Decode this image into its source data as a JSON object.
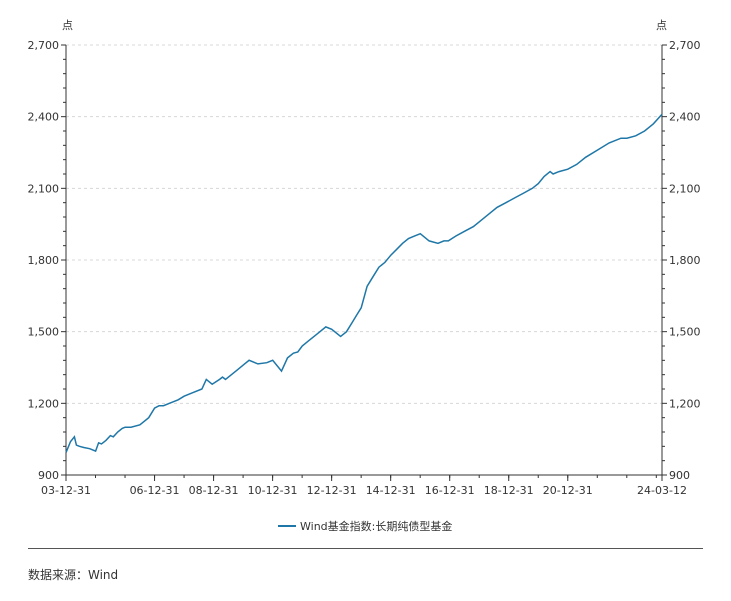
{
  "chart_data": {
    "type": "line",
    "y_unit_left": "点",
    "y_unit_right": "点",
    "ylim": [
      900,
      2700
    ],
    "y_ticks": [
      900,
      1200,
      1500,
      1800,
      2100,
      2400,
      2700
    ],
    "y_tick_labels": [
      "900",
      "1,200",
      "1,500",
      "1,800",
      "2,100",
      "2,400",
      "2,700"
    ],
    "x_range": [
      2003.997,
      2024.19
    ],
    "x_tick_labels": [
      {
        "x": 2003.997,
        "label": "03-12-31"
      },
      {
        "x": 2006.997,
        "label": "06-12-31"
      },
      {
        "x": 2008.997,
        "label": "08-12-31"
      },
      {
        "x": 2010.997,
        "label": "10-12-31"
      },
      {
        "x": 2012.997,
        "label": "12-12-31"
      },
      {
        "x": 2014.997,
        "label": "14-12-31"
      },
      {
        "x": 2016.997,
        "label": "16-12-31"
      },
      {
        "x": 2018.997,
        "label": "18-12-31"
      },
      {
        "x": 2020.997,
        "label": "20-12-31"
      },
      {
        "x": 2024.19,
        "label": "24-03-12"
      }
    ],
    "grid": "horizontal-dashed",
    "legend_position": "bottom-center",
    "color": "#1f77a8",
    "series": [
      {
        "name": "Wind基金指数:长期纯债型基金",
        "x": [
          2004.0,
          2004.15,
          2004.28,
          2004.35,
          2004.45,
          2004.6,
          2004.8,
          2005.0,
          2005.1,
          2005.2,
          2005.35,
          2005.5,
          2005.6,
          2005.75,
          2005.9,
          2006.0,
          2006.2,
          2006.5,
          2006.8,
          2007.0,
          2007.15,
          2007.3,
          2007.5,
          2007.8,
          2008.0,
          2008.3,
          2008.6,
          2008.75,
          2008.85,
          2008.95,
          2009.2,
          2009.3,
          2009.4,
          2009.6,
          2009.8,
          2010.0,
          2010.2,
          2010.5,
          2010.8,
          2011.0,
          2011.3,
          2011.5,
          2011.7,
          2011.85,
          2012.0,
          2012.2,
          2012.5,
          2012.8,
          2013.0,
          2013.3,
          2013.5,
          2013.7,
          2013.85,
          2014.0,
          2014.2,
          2014.4,
          2014.6,
          2014.8,
          2015.0,
          2015.2,
          2015.4,
          2015.6,
          2015.8,
          2016.0,
          2016.3,
          2016.6,
          2016.8,
          2016.95,
          2017.2,
          2017.5,
          2017.8,
          2018.0,
          2018.3,
          2018.6,
          2018.9,
          2019.2,
          2019.5,
          2019.8,
          2020.0,
          2020.2,
          2020.4,
          2020.5,
          2020.7,
          2021.0,
          2021.3,
          2021.6,
          2022.0,
          2022.4,
          2022.8,
          2023.0,
          2023.3,
          2023.6,
          2023.9,
          2024.19
        ],
        "values": [
          995,
          1040,
          1060,
          1025,
          1020,
          1015,
          1010,
          1000,
          1035,
          1030,
          1045,
          1065,
          1060,
          1080,
          1095,
          1100,
          1100,
          1110,
          1140,
          1180,
          1190,
          1190,
          1200,
          1215,
          1230,
          1245,
          1260,
          1300,
          1290,
          1280,
          1300,
          1310,
          1300,
          1320,
          1340,
          1360,
          1380,
          1365,
          1370,
          1380,
          1335,
          1390,
          1410,
          1415,
          1440,
          1460,
          1490,
          1520,
          1510,
          1480,
          1500,
          1540,
          1570,
          1600,
          1690,
          1730,
          1770,
          1790,
          1820,
          1845,
          1870,
          1890,
          1900,
          1910,
          1880,
          1870,
          1880,
          1880,
          1900,
          1920,
          1940,
          1960,
          1990,
          2020,
          2040,
          2060,
          2080,
          2100,
          2120,
          2150,
          2170,
          2160,
          2170,
          2180,
          2200,
          2230,
          2260,
          2290,
          2310,
          2310,
          2320,
          2340,
          2370,
          2410
        ]
      }
    ]
  },
  "source": {
    "text": "数据来源：Wind"
  }
}
